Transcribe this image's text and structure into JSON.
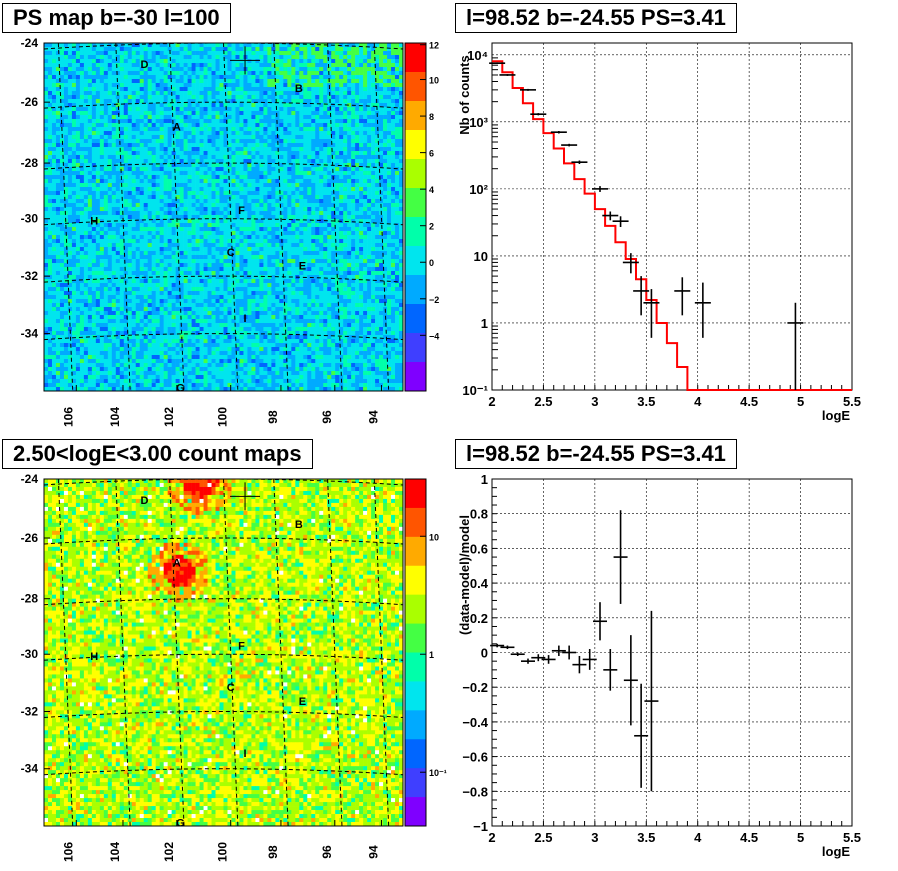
{
  "panels": {
    "map1_title": "PS map b=-30 l=100",
    "spec_title": "l=98.52 b=-24.55 PS=3.41",
    "map2_title": "2.50<logE<3.00 count maps",
    "resid_title": "l=98.52 b=-24.55 PS=3.41"
  },
  "colors": {
    "model_line": "#ff0000",
    "data_points": "#000000",
    "grid": "#000000",
    "palette": [
      "#7f00ff",
      "#3f3fff",
      "#0066ff",
      "#00aaff",
      "#00e5ee",
      "#00ffaa",
      "#44ff44",
      "#aaff00",
      "#ffff00",
      "#ffaa00",
      "#ff5500",
      "#ff0000"
    ]
  },
  "map_axes": {
    "x_ticks": [
      "106",
      "104",
      "102",
      "100",
      "98",
      "96",
      "94"
    ],
    "y_ticks": [
      "-24",
      "-26",
      "-28",
      "-30",
      "-32",
      "-34"
    ],
    "sources": [
      "D",
      "B",
      "A",
      "F",
      "H",
      "C",
      "E",
      "I",
      "G"
    ]
  },
  "colorbars": {
    "map1_ticks": [
      "12",
      "10",
      "8",
      "6",
      "4",
      "2",
      "0",
      "−2",
      "−4"
    ],
    "map2_ticks": [
      "10",
      "1",
      "10⁻¹"
    ]
  },
  "chart_data": [
    {
      "type": "line",
      "name": "spectrum",
      "xlabel": "logE",
      "ylabel": "Nb of counts",
      "xlim": [
        2,
        5.5
      ],
      "ylim": [
        0.1,
        15000
      ],
      "yscale": "log",
      "grid": true,
      "x_ticks": [
        "2",
        "2.5",
        "3",
        "3.5",
        "4",
        "4.5",
        "5",
        "5.5"
      ],
      "y_ticks": [
        "10⁻¹",
        "1",
        "10",
        "10²",
        "10³",
        "10⁴"
      ],
      "model_step_edges": [
        2.0,
        2.1,
        2.2,
        2.3,
        2.4,
        2.5,
        2.6,
        2.7,
        2.8,
        2.9,
        3.0,
        3.1,
        3.2,
        3.3,
        3.4,
        3.5,
        3.6,
        3.7,
        3.8,
        3.9,
        4.0,
        5.5
      ],
      "model_values": [
        8000,
        5500,
        3200,
        1900,
        1100,
        680,
        400,
        240,
        140,
        85,
        50,
        28,
        16,
        9,
        4.5,
        2.2,
        1,
        0.5,
        0.22,
        0.1,
        0.1
      ],
      "data_points": [
        {
          "x": 2.05,
          "y": 7500,
          "yerr_lo": 7300,
          "yerr_hi": 7700
        },
        {
          "x": 2.15,
          "y": 5000,
          "yerr_lo": 4850,
          "yerr_hi": 5150
        },
        {
          "x": 2.35,
          "y": 3000,
          "yerr_lo": 2900,
          "yerr_hi": 3100
        },
        {
          "x": 2.45,
          "y": 1300,
          "yerr_lo": 1250,
          "yerr_hi": 1350
        },
        {
          "x": 2.65,
          "y": 700,
          "yerr_lo": 670,
          "yerr_hi": 730
        },
        {
          "x": 2.75,
          "y": 450,
          "yerr_lo": 430,
          "yerr_hi": 470
        },
        {
          "x": 2.85,
          "y": 250,
          "yerr_lo": 235,
          "yerr_hi": 265
        },
        {
          "x": 3.05,
          "y": 100,
          "yerr_lo": 90,
          "yerr_hi": 110
        },
        {
          "x": 3.15,
          "y": 40,
          "yerr_lo": 34,
          "yerr_hi": 46
        },
        {
          "x": 3.25,
          "y": 33,
          "yerr_lo": 27,
          "yerr_hi": 39
        },
        {
          "x": 3.35,
          "y": 8,
          "yerr_lo": 5.5,
          "yerr_hi": 11
        },
        {
          "x": 3.45,
          "y": 3,
          "yerr_lo": 1.3,
          "yerr_hi": 5
        },
        {
          "x": 3.55,
          "y": 2,
          "yerr_lo": 0.6,
          "yerr_hi": 3.2
        },
        {
          "x": 3.85,
          "y": 3,
          "yerr_lo": 1.3,
          "yerr_hi": 4.8
        },
        {
          "x": 4.05,
          "y": 2,
          "yerr_lo": 0.6,
          "yerr_hi": 4
        },
        {
          "x": 4.95,
          "y": 1,
          "yerr_lo": 0.1,
          "yerr_hi": 2
        }
      ]
    },
    {
      "type": "scatter",
      "name": "residuals",
      "xlabel": "logE",
      "ylabel": "(data-model)/model",
      "xlim": [
        2,
        5.5
      ],
      "ylim": [
        -1,
        1
      ],
      "grid": true,
      "x_ticks": [
        "2",
        "2.5",
        "3",
        "3.5",
        "4",
        "4.5",
        "5",
        "5.5"
      ],
      "y_ticks": [
        "1",
        "0.8",
        "0.6",
        "0.4",
        "0.2",
        "0",
        "−0.2",
        "−0.4",
        "−0.6",
        "−0.8",
        "−1"
      ],
      "points": [
        {
          "x": 2.05,
          "y": 0.04,
          "err": 0.01
        },
        {
          "x": 2.15,
          "y": 0.03,
          "err": 0.01
        },
        {
          "x": 2.25,
          "y": -0.01,
          "err": 0.01
        },
        {
          "x": 2.35,
          "y": -0.05,
          "err": 0.015
        },
        {
          "x": 2.45,
          "y": -0.03,
          "err": 0.02
        },
        {
          "x": 2.55,
          "y": -0.04,
          "err": 0.025
        },
        {
          "x": 2.65,
          "y": 0.01,
          "err": 0.03
        },
        {
          "x": 2.75,
          "y": 0.0,
          "err": 0.04
        },
        {
          "x": 2.85,
          "y": -0.07,
          "err": 0.05
        },
        {
          "x": 2.95,
          "y": -0.04,
          "err": 0.06
        },
        {
          "x": 3.05,
          "y": 0.18,
          "err": 0.11
        },
        {
          "x": 3.15,
          "y": -0.1,
          "err": 0.12
        },
        {
          "x": 3.25,
          "y": 0.55,
          "err": 0.27
        },
        {
          "x": 3.35,
          "y": -0.16,
          "err": 0.26
        },
        {
          "x": 3.45,
          "y": -0.48,
          "err": 0.3
        },
        {
          "x": 3.55,
          "y": -0.28,
          "err": 0.52
        }
      ]
    }
  ]
}
